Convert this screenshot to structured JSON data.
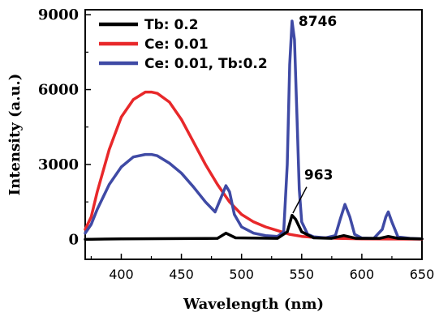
{
  "chart_data": {
    "type": "line",
    "xlabel": "Wavelength (nm)",
    "ylabel": "Intensity (a.u.)",
    "xlim": [
      370,
      650
    ],
    "ylim": [
      -800,
      9200
    ],
    "xticks": [
      400,
      450,
      500,
      550,
      600,
      650
    ],
    "yticks": [
      0,
      3000,
      6000,
      9000
    ],
    "legend_position": "top-left",
    "series": [
      {
        "name": "Tb: 0.2",
        "color": "#000000",
        "x": [
          370,
          400,
          450,
          480,
          487,
          495,
          530,
          538,
          542,
          545,
          550,
          560,
          575,
          585,
          595,
          615,
          622,
          630,
          650
        ],
        "y": [
          0,
          20,
          30,
          40,
          250,
          60,
          40,
          300,
          963,
          800,
          300,
          60,
          40,
          150,
          40,
          40,
          120,
          40,
          20
        ]
      },
      {
        "name": "Ce: 0.01",
        "color": "#e8282a",
        "x": [
          370,
          375,
          380,
          390,
          400,
          410,
          420,
          425,
          430,
          440,
          450,
          460,
          470,
          480,
          490,
          500,
          510,
          520,
          530,
          540,
          550,
          560,
          580,
          600,
          650
        ],
        "y": [
          400,
          900,
          1900,
          3600,
          4900,
          5600,
          5900,
          5900,
          5850,
          5500,
          4800,
          3900,
          3000,
          2200,
          1500,
          1000,
          700,
          500,
          350,
          200,
          120,
          80,
          40,
          20,
          10
        ]
      },
      {
        "name": "Ce: 0.01, Tb:0.2",
        "color": "#3f4aa5",
        "x": [
          370,
          375,
          380,
          390,
          400,
          410,
          420,
          425,
          430,
          440,
          450,
          460,
          470,
          478,
          484,
          487,
          490,
          494,
          500,
          510,
          520,
          530,
          535,
          538,
          540,
          542,
          544,
          546,
          548,
          550,
          555,
          560,
          570,
          578,
          582,
          586,
          590,
          594,
          600,
          610,
          617,
          620,
          622,
          625,
          630,
          640,
          650
        ],
        "y": [
          250,
          600,
          1200,
          2200,
          2900,
          3300,
          3400,
          3400,
          3350,
          3050,
          2650,
          2100,
          1500,
          1100,
          1800,
          2150,
          1900,
          1000,
          500,
          250,
          150,
          120,
          300,
          3000,
          7000,
          8746,
          8000,
          5000,
          2000,
          700,
          200,
          100,
          60,
          150,
          800,
          1400,
          900,
          200,
          50,
          40,
          400,
          900,
          1100,
          700,
          100,
          40,
          20
        ]
      }
    ],
    "annotations": [
      {
        "text": "8746",
        "x": 542,
        "y": 8746
      },
      {
        "text": "963",
        "x": 542,
        "y": 963
      }
    ]
  }
}
